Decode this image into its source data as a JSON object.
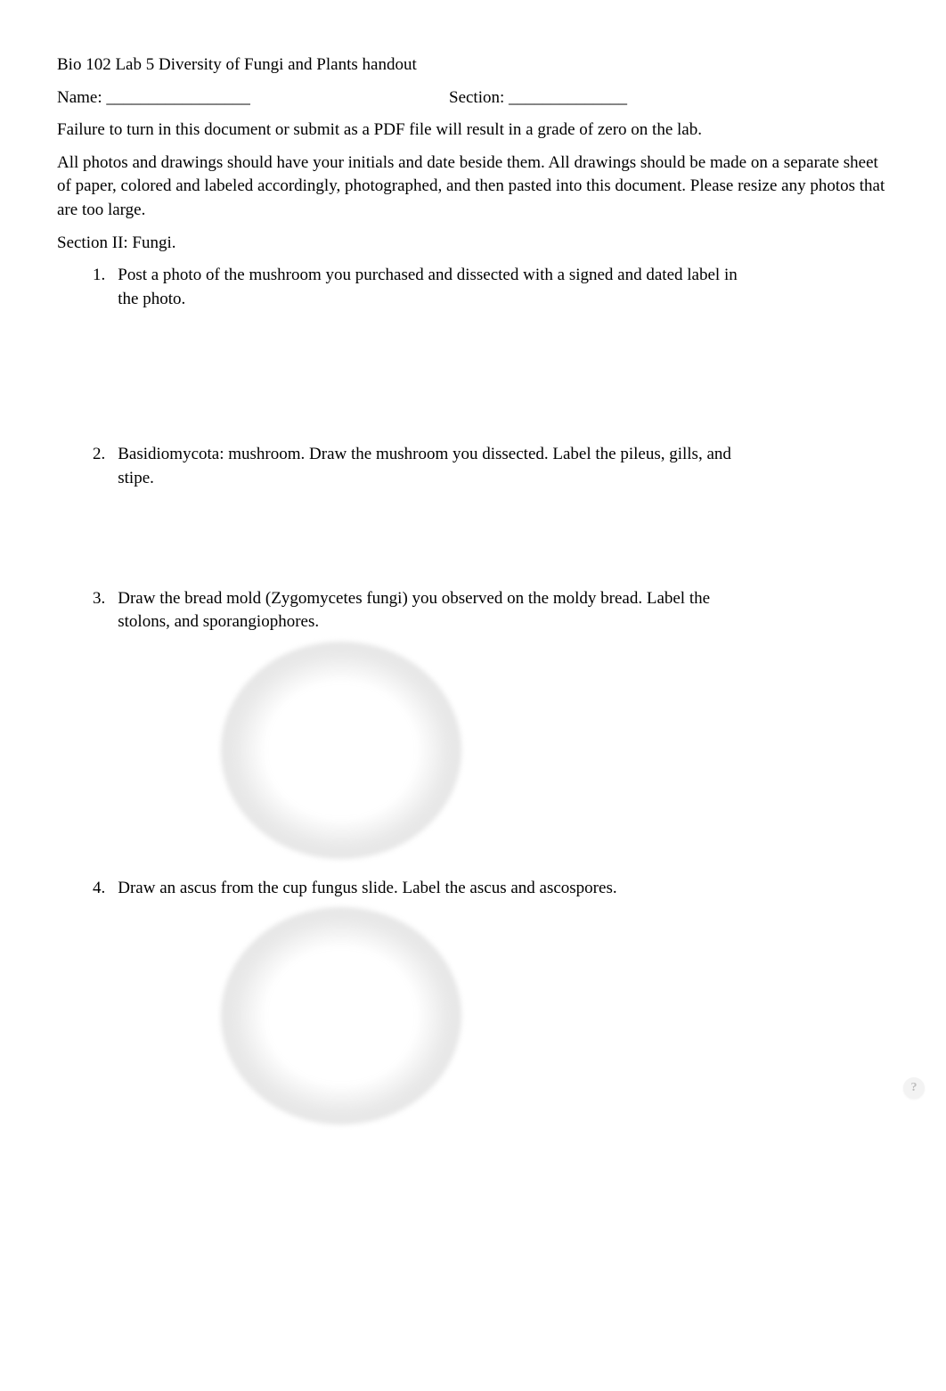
{
  "header": {
    "title": "Bio 102 Lab 5 Diversity of Fungi and Plants handout",
    "name_label": "Name: _________________",
    "section_label": "Section: ______________"
  },
  "instructions": {
    "warning": "Failure to turn in this document or submit as a PDF file will result in a grade of zero on the lab.",
    "photo_note": "All photos and drawings should have your initials and date beside them. All drawings should be made on a separate sheet of paper, colored and labeled accordingly, photographed, and then pasted into this document. Please resize any photos that are too large."
  },
  "section": {
    "heading": "Section II: Fungi."
  },
  "items": [
    {
      "num": "1.",
      "text": "Post a photo of the mushroom you purchased and dissected with a signed and dated label in the photo."
    },
    {
      "num": "2.",
      "text": "Basidiomycota: mushroom. Draw the mushroom you dissected. Label the pileus, gills, and stipe."
    },
    {
      "num": "3.",
      "text": "Draw the bread mold (Zygomycetes fungi) you observed on the moldy bread. Label the stolons, and sporangiophores."
    },
    {
      "num": "4.",
      "text": "Draw an ascus from the cup fungus slide. Label the ascus and ascospores."
    }
  ],
  "help_icon": "?",
  "style": {
    "background": "#ffffff",
    "text_color": "#000000",
    "font_family": "Times New Roman",
    "font_size_pt": 14,
    "circle_gradient_inner": "#ffffff",
    "circle_gradient_mid": "#e6e6e6",
    "circle_gradient_outer": "#cccccc",
    "help_bg": "#f3f3f3",
    "help_color": "#bdbdbd"
  }
}
